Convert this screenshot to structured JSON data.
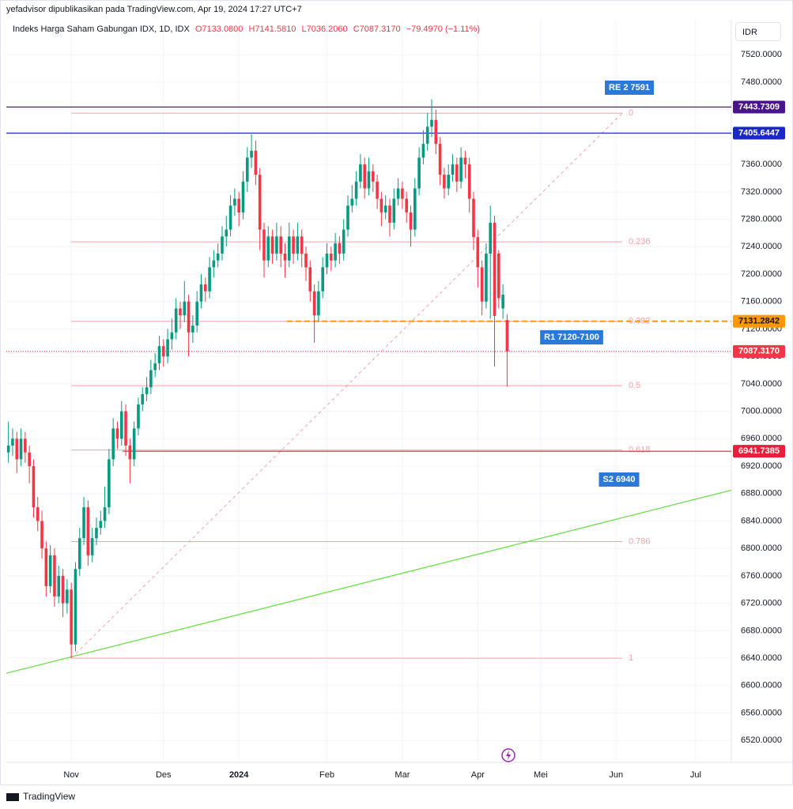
{
  "header": {
    "publisher": "yefadvisor dipublikasikan pada TradingView.com, Apr 19, 2024 17:27 UTC+7",
    "symbol": "Indeks Harga Saham Gabungan IDX, 1D, IDX",
    "ohlc": [
      "O7133.0800",
      "H7141.5810",
      "L7036.2060",
      "C7087.3170",
      "−79.4970 (−1.11%)"
    ],
    "currency": "IDR",
    "brand": "TradingView"
  },
  "chart_data": {
    "type": "candlestick",
    "up_color": "#089981",
    "down_color": "#f23645",
    "grid": true,
    "categories": [
      null,
      null,
      null,
      null,
      null,
      null,
      null,
      null,
      null,
      null,
      null,
      null,
      null,
      null,
      null,
      "Nov",
      null,
      null,
      null,
      null,
      null,
      null,
      null,
      null,
      null,
      null,
      null,
      null,
      null,
      null,
      null,
      null,
      null,
      null,
      null,
      null,
      null,
      "Des",
      null,
      null,
      null,
      null,
      null,
      null,
      null,
      null,
      null,
      null,
      null,
      null,
      null,
      null,
      null,
      null,
      null,
      "2024",
      null,
      null,
      null,
      null,
      null,
      null,
      null,
      null,
      null,
      null,
      null,
      null,
      null,
      null,
      null,
      null,
      null,
      null,
      null,
      null,
      "Feb",
      null,
      null,
      null,
      null,
      null,
      null,
      null,
      null,
      null,
      null,
      null,
      null,
      null,
      null,
      null,
      null,
      null,
      "Mar",
      null,
      null,
      null,
      null,
      null,
      null,
      null,
      null,
      null,
      null,
      null,
      null,
      null,
      null,
      null,
      null,
      null,
      "Apr",
      null,
      null,
      null,
      null,
      null,
      null,
      null,
      null,
      null,
      null,
      null,
      null,
      null,
      null,
      "Mei",
      null,
      null,
      null,
      null,
      null,
      null,
      null,
      null,
      null,
      null,
      null,
      null,
      null,
      null,
      null,
      null,
      null,
      "Jun",
      null,
      null,
      null,
      null,
      null,
      null,
      null,
      null,
      null,
      null,
      null,
      null,
      null,
      null,
      null,
      null,
      null,
      null,
      "Jul",
      null,
      null,
      null,
      null,
      null,
      null,
      null,
      null
    ],
    "open": [
      6940,
      6950,
      6960,
      6930,
      6960,
      6940,
      6920,
      6860,
      6840,
      6800,
      6745,
      6790,
      6730,
      6760,
      6720,
      6740,
      6660,
      6770,
      6815,
      6860,
      6790,
      6815,
      6830,
      6840,
      6860,
      6930,
      6975,
      6960,
      7000,
      6950,
      6930,
      6975,
      7010,
      7025,
      7035,
      7060,
      7070,
      7095,
      7080,
      7105,
      7115,
      7150,
      7140,
      7160,
      7115,
      7125,
      7160,
      7185,
      7175,
      7210,
      7220,
      7230,
      7255,
      7265,
      7300,
      7310,
      7290,
      7335,
      7370,
      7380,
      7345,
      7265,
      7220,
      7255,
      7230,
      7255,
      7230,
      7220,
      7255,
      7230,
      7255,
      7230,
      7210,
      7175,
      7140,
      7175,
      7210,
      7230,
      7220,
      7245,
      7230,
      7265,
      7300,
      7310,
      7335,
      7360,
      7325,
      7350,
      7335,
      7310,
      7290,
      7300,
      7275,
      7310,
      7325,
      7310,
      7290,
      7265,
      7325,
      7370,
      7390,
      7415,
      7425,
      7390,
      7345,
      7325,
      7345,
      7360,
      7335,
      7370,
      7360,
      7310,
      7254,
      7210,
      7160,
      7230,
      7275,
      7230,
      7150,
      7133.08,
      null,
      null,
      null,
      null,
      null,
      null,
      null,
      null,
      null,
      null,
      null,
      null,
      null,
      null,
      null,
      null,
      null,
      null,
      null,
      null,
      null,
      null,
      null,
      null,
      null,
      null,
      null,
      null,
      null,
      null,
      null,
      null,
      null,
      null,
      null,
      null,
      null,
      null,
      null,
      null,
      null,
      null,
      null,
      null,
      null,
      null,
      null,
      null,
      null,
      null,
      null,
      null,
      null
    ],
    "high": [
      6985,
      6975,
      6970,
      6975,
      6970,
      6950,
      6930,
      6875,
      6855,
      6810,
      6805,
      6800,
      6775,
      6770,
      6755,
      6750,
      6780,
      6830,
      6875,
      6870,
      6830,
      6845,
      6855,
      6890,
      6945,
      6990,
      6985,
      7015,
      7010,
      6960,
      6985,
      7020,
      7035,
      7050,
      7075,
      7085,
      7110,
      7105,
      7120,
      7135,
      7165,
      7160,
      7190,
      7170,
      7140,
      7175,
      7200,
      7195,
      7225,
      7235,
      7245,
      7270,
      7285,
      7315,
      7325,
      7320,
      7350,
      7385,
      7404,
      7395,
      7355,
      7275,
      7270,
      7265,
      7275,
      7270,
      7245,
      7275,
      7265,
      7275,
      7265,
      7240,
      7220,
      7185,
      7190,
      7225,
      7245,
      7240,
      7260,
      7255,
      7280,
      7315,
      7330,
      7350,
      7375,
      7370,
      7370,
      7360,
      7345,
      7320,
      7315,
      7310,
      7325,
      7340,
      7335,
      7320,
      7300,
      7340,
      7385,
      7410,
      7435,
      7455,
      7440,
      7400,
      7355,
      7360,
      7375,
      7370,
      7385,
      7380,
      7370,
      7320,
      7265,
      7220,
      7245,
      7300,
      7285,
      7235,
      7185,
      7141.581,
      null,
      null,
      null,
      null,
      null,
      null,
      null,
      null,
      null,
      null,
      null,
      null,
      null,
      null,
      null,
      null,
      null,
      null,
      null,
      null,
      null,
      null,
      null,
      null,
      null,
      null,
      null,
      null,
      null,
      null,
      null,
      null,
      null,
      null,
      null,
      null,
      null,
      null,
      null,
      null,
      null,
      null,
      null,
      null,
      null,
      null,
      null,
      null,
      null,
      null,
      null,
      null,
      null
    ],
    "low": [
      6925,
      6935,
      6910,
      6920,
      6925,
      6895,
      6845,
      6825,
      6785,
      6730,
      6735,
      6715,
      6720,
      6700,
      6705,
      6640,
      6650,
      6760,
      6805,
      6775,
      6780,
      6805,
      6820,
      6830,
      6850,
      6920,
      6945,
      6950,
      6935,
      6895,
      6920,
      6965,
      7000,
      7015,
      7025,
      7050,
      7060,
      7065,
      7070,
      7090,
      7105,
      7120,
      7130,
      7080,
      7100,
      7115,
      7150,
      7160,
      7165,
      7195,
      7210,
      7220,
      7240,
      7255,
      7285,
      7270,
      7280,
      7320,
      7355,
      7330,
      7235,
      7195,
      7210,
      7215,
      7220,
      7210,
      7195,
      7210,
      7215,
      7220,
      7210,
      7190,
      7160,
      7100,
      7130,
      7165,
      7200,
      7205,
      7210,
      7215,
      7220,
      7255,
      7290,
      7300,
      7325,
      7310,
      7315,
      7320,
      7295,
      7270,
      7280,
      7255,
      7265,
      7300,
      7295,
      7275,
      7240,
      7255,
      7315,
      7360,
      7380,
      7400,
      7375,
      7330,
      7310,
      7315,
      7335,
      7320,
      7325,
      7340,
      7290,
      7235,
      7180,
      7140,
      7150,
      7135,
      7065,
      7150,
      7135,
      7036.206,
      null,
      null,
      null,
      null,
      null,
      null,
      null,
      null,
      null,
      null,
      null,
      null,
      null,
      null,
      null,
      null,
      null,
      null,
      null,
      null,
      null,
      null,
      null,
      null,
      null,
      null,
      null,
      null,
      null,
      null,
      null,
      null,
      null,
      null,
      null,
      null,
      null,
      null,
      null,
      null,
      null,
      null,
      null,
      null,
      null,
      null,
      null,
      null,
      null,
      null,
      null,
      null,
      null
    ],
    "close": [
      6950,
      6960,
      6930,
      6960,
      6940,
      6920,
      6860,
      6840,
      6800,
      6745,
      6790,
      6730,
      6760,
      6720,
      6740,
      6660,
      6770,
      6815,
      6860,
      6790,
      6815,
      6830,
      6840,
      6860,
      6930,
      6975,
      6960,
      7000,
      6950,
      6930,
      6975,
      7010,
      7025,
      7035,
      7060,
      7070,
      7095,
      7080,
      7105,
      7115,
      7150,
      7140,
      7160,
      7115,
      7125,
      7160,
      7185,
      7175,
      7210,
      7220,
      7230,
      7255,
      7265,
      7300,
      7310,
      7290,
      7335,
      7370,
      7380,
      7345,
      7265,
      7220,
      7255,
      7230,
      7255,
      7230,
      7220,
      7255,
      7230,
      7255,
      7230,
      7210,
      7175,
      7140,
      7175,
      7210,
      7230,
      7220,
      7245,
      7230,
      7265,
      7300,
      7310,
      7335,
      7360,
      7325,
      7350,
      7335,
      7310,
      7290,
      7300,
      7275,
      7310,
      7325,
      7310,
      7290,
      7265,
      7325,
      7370,
      7390,
      7415,
      7425,
      7390,
      7345,
      7325,
      7345,
      7360,
      7335,
      7370,
      7360,
      7310,
      7254,
      7210,
      7160,
      7230,
      7275,
      7139,
      7165,
      7170,
      7087.317,
      null,
      null,
      null,
      null,
      null,
      null,
      null,
      null,
      null,
      null,
      null,
      null,
      null,
      null,
      null,
      null,
      null,
      null,
      null,
      null,
      null,
      null,
      null,
      null,
      null,
      null,
      null,
      null,
      null,
      null,
      null,
      null,
      null,
      null,
      null,
      null,
      null,
      null,
      null,
      null,
      null,
      null,
      null,
      null,
      null,
      null,
      null,
      null,
      null,
      null,
      null,
      null,
      null
    ],
    "ylim": [
      6488,
      7571
    ],
    "yticks": [
      {
        "value": 7520,
        "label": "7520.0000"
      },
      {
        "value": 7480,
        "label": "7480.0000"
      },
      {
        "value": 7440,
        "label": "7440.0000"
      },
      {
        "value": 7400,
        "label": "7400.0000"
      },
      {
        "value": 7360,
        "label": "7360.0000"
      },
      {
        "value": 7320,
        "label": "7320.0000"
      },
      {
        "value": 7280,
        "label": "7280.0000"
      },
      {
        "value": 7240,
        "label": "7240.0000"
      },
      {
        "value": 7200,
        "label": "7200.0000"
      },
      {
        "value": 7160,
        "label": "7160.0000"
      },
      {
        "value": 7120,
        "label": "7120.0000"
      },
      {
        "value": 7080,
        "label": "7080.0000"
      },
      {
        "value": 7040,
        "label": "7040.0000"
      },
      {
        "value": 7000,
        "label": "7000.0000"
      },
      {
        "value": 6960,
        "label": "6960.0000"
      },
      {
        "value": 6920,
        "label": "6920.0000"
      },
      {
        "value": 6880,
        "label": "6880.0000"
      },
      {
        "value": 6840,
        "label": "6840.0000"
      },
      {
        "value": 6800,
        "label": "6800.0000"
      },
      {
        "value": 6760,
        "label": "6760.0000"
      },
      {
        "value": 6720,
        "label": "6720.0000"
      },
      {
        "value": 6680,
        "label": "6680.0000"
      },
      {
        "value": 6640,
        "label": "6640.0000"
      },
      {
        "value": 6600,
        "label": "6600.0000"
      },
      {
        "value": 6560,
        "label": "6560.0000"
      },
      {
        "value": 6520,
        "label": "6520.0000"
      }
    ],
    "price_lines": [
      {
        "value": 7443.7309,
        "color": "#4a148c",
        "style": "solid"
      },
      {
        "value": 7405.6447,
        "color": "#1a27c9",
        "style": "solid"
      },
      {
        "value": 7131.2842,
        "color": "#ff9800",
        "style": "dashed"
      },
      {
        "value": 7087.317,
        "label": "7087.3170",
        "color": "#f23645",
        "style": "dotted"
      },
      {
        "value": 6941.7385,
        "color": "#e91e3a",
        "style": "solid"
      }
    ],
    "fib": {
      "from": 6640,
      "to": 7434.7,
      "color": "#f7a1a8",
      "levels": [
        0,
        0.236,
        0.382,
        0.5,
        0.618,
        0.786,
        1
      ]
    },
    "trendline": {
      "values": [
        6618,
        6885
      ],
      "color": "#5ee03a"
    },
    "annotations": [
      {
        "text": "RE 2 7591",
        "color": "#2a79d6"
      },
      {
        "text": "R1 7120-7100",
        "color": "#2a79d6"
      },
      {
        "text": "S2 6940",
        "color": "#2a79d6"
      }
    ]
  }
}
